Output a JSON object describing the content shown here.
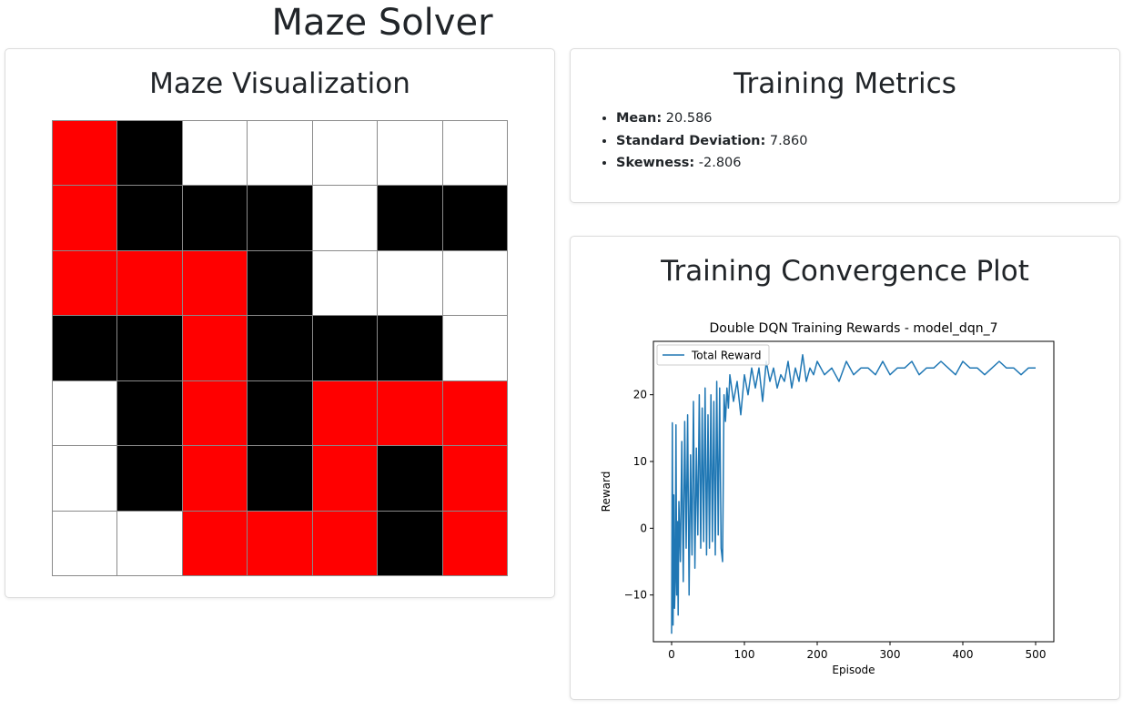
{
  "page_title": "Maze Solver",
  "maze": {
    "title": "Maze Visualization",
    "colors": {
      "path": "#ff0000",
      "wall": "#000000",
      "open": "#ffffff"
    },
    "grid": [
      [
        "path",
        "wall",
        "open",
        "open",
        "open",
        "open",
        "open"
      ],
      [
        "path",
        "wall",
        "wall",
        "wall",
        "open",
        "wall",
        "wall"
      ],
      [
        "path",
        "path",
        "path",
        "wall",
        "open",
        "open",
        "open"
      ],
      [
        "wall",
        "wall",
        "path",
        "wall",
        "wall",
        "wall",
        "open"
      ],
      [
        "open",
        "wall",
        "path",
        "wall",
        "path",
        "path",
        "path"
      ],
      [
        "open",
        "wall",
        "path",
        "wall",
        "path",
        "wall",
        "path"
      ],
      [
        "open",
        "open",
        "path",
        "path",
        "path",
        "wall",
        "path"
      ]
    ]
  },
  "metrics": {
    "title": "Training Metrics",
    "items": [
      {
        "label": "Mean:",
        "value": "20.586"
      },
      {
        "label": "Standard Deviation:",
        "value": "7.860"
      },
      {
        "label": "Skewness:",
        "value": "-2.806"
      }
    ]
  },
  "plot_card": {
    "title": "Training Convergence Plot"
  },
  "chart_data": {
    "type": "line",
    "title": "Double DQN Training Rewards - model_dqn_7",
    "xlabel": "Episode",
    "ylabel": "Reward",
    "xlim": [
      -25,
      525
    ],
    "ylim": [
      -17,
      28
    ],
    "xticks": [
      0,
      100,
      200,
      300,
      400,
      500
    ],
    "yticks": [
      -10,
      0,
      10,
      20
    ],
    "grid": false,
    "legend_position": "top-left",
    "line_color": "#1f77b4",
    "series": [
      {
        "name": "Total Reward",
        "x": [
          0,
          1,
          2,
          3,
          4,
          5,
          6,
          7,
          8,
          9,
          10,
          12,
          14,
          16,
          18,
          20,
          22,
          24,
          26,
          28,
          30,
          32,
          34,
          36,
          38,
          40,
          42,
          44,
          46,
          48,
          50,
          52,
          54,
          56,
          58,
          60,
          62,
          64,
          66,
          68,
          70,
          72,
          74,
          76,
          78,
          80,
          85,
          90,
          95,
          100,
          105,
          110,
          115,
          120,
          125,
          130,
          135,
          140,
          145,
          150,
          155,
          160,
          165,
          170,
          175,
          180,
          185,
          190,
          195,
          200,
          210,
          220,
          230,
          240,
          250,
          260,
          270,
          280,
          290,
          300,
          310,
          320,
          330,
          340,
          350,
          360,
          370,
          380,
          390,
          400,
          410,
          420,
          430,
          440,
          450,
          460,
          470,
          480,
          490,
          500
        ],
        "y": [
          -15.8,
          15.8,
          -14.5,
          5,
          -12,
          -8,
          15.5,
          -10,
          1,
          -13,
          4,
          -5,
          13,
          -8,
          16,
          -3,
          17,
          -10,
          11,
          -4,
          19,
          -6,
          12,
          -1,
          20,
          -3,
          18,
          -2,
          21,
          -4,
          17,
          -3,
          20,
          -2,
          19,
          -4,
          22,
          -1,
          21,
          -3,
          -5,
          20,
          16,
          21,
          18,
          23,
          19,
          22,
          17,
          23,
          20,
          24,
          21,
          24,
          19,
          25,
          22,
          24,
          21,
          23,
          22,
          25,
          21,
          24,
          22,
          26,
          22,
          24,
          23,
          25,
          23,
          24,
          22,
          25,
          23,
          24,
          24,
          23,
          25,
          23,
          24,
          24,
          25,
          23,
          24,
          24,
          25,
          24,
          23,
          25,
          24,
          24,
          23,
          24,
          25,
          24,
          24,
          23,
          24,
          24
        ]
      }
    ]
  }
}
